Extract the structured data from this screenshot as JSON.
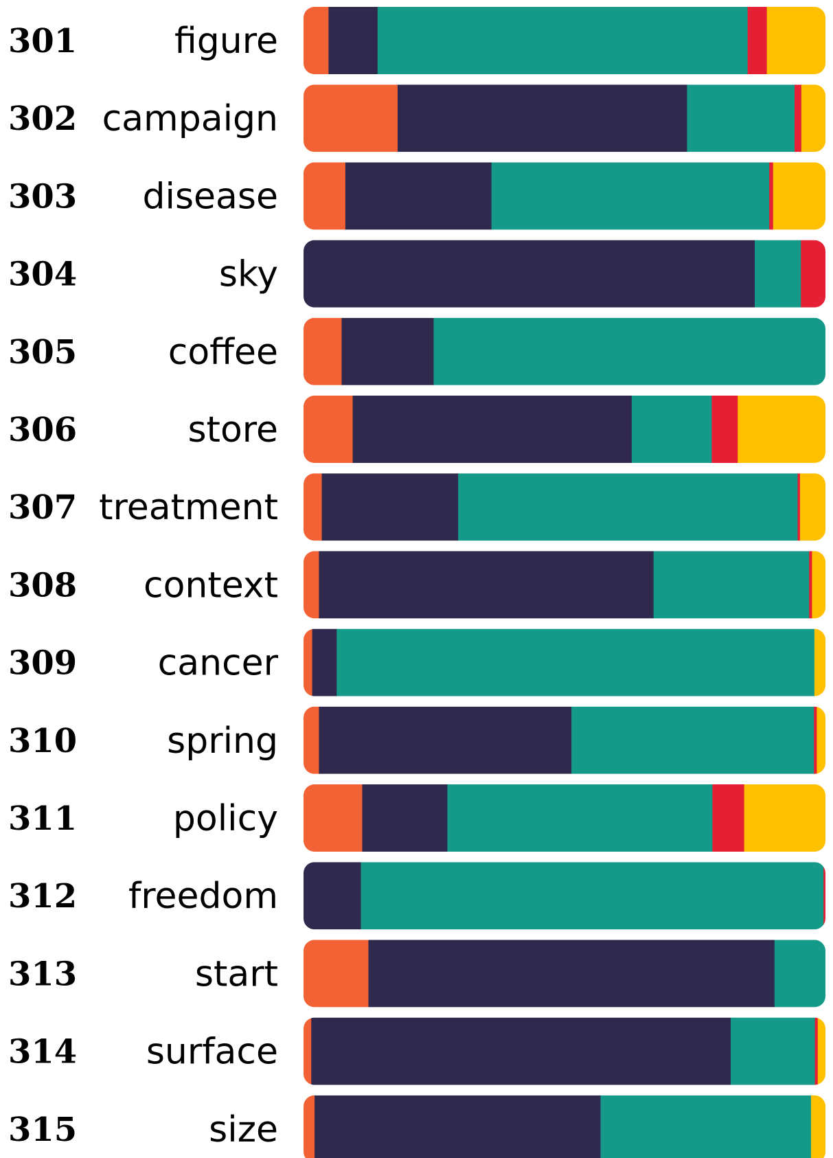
{
  "chart_data": {
    "type": "bar",
    "orientation": "horizontal",
    "stacked": true,
    "normalized": true,
    "legend": "none",
    "grid": false,
    "xlim": [
      0,
      100
    ],
    "segment_colors": [
      "#f26234",
      "#2f294d",
      "#159a89",
      "#e62034",
      "#ffc000"
    ],
    "rows": [
      {
        "rank": "301",
        "word": "figure",
        "segments": [
          5.2,
          10.2,
          77.0,
          4.0,
          12.2
        ]
      },
      {
        "rank": "302",
        "word": "campaign",
        "segments": [
          19.5,
          60.0,
          22.3,
          1.4,
          5.0
        ]
      },
      {
        "rank": "303",
        "word": "disease",
        "segments": [
          8.7,
          30.4,
          57.8,
          0.8,
          10.9
        ]
      },
      {
        "rank": "304",
        "word": "sky",
        "segments": [
          0,
          93.8,
          9.6,
          5.1,
          0
        ]
      },
      {
        "rank": "305",
        "word": "coffee",
        "segments": [
          7.9,
          19.1,
          81.3,
          0,
          0
        ]
      },
      {
        "rank": "306",
        "word": "store",
        "segments": [
          10.2,
          57.9,
          16.6,
          5.4,
          18.2
        ]
      },
      {
        "rank": "307",
        "word": "treatment",
        "segments": [
          3.8,
          28.4,
          70.7,
          0.5,
          5.3
        ]
      },
      {
        "rank": "308",
        "word": "context",
        "segments": [
          3.2,
          69.7,
          32.4,
          0.6,
          2.8
        ]
      },
      {
        "rank": "309",
        "word": "cancer",
        "segments": [
          1.8,
          5.1,
          99.4,
          0,
          2.3
        ]
      },
      {
        "rank": "310",
        "word": "spring",
        "segments": [
          3.2,
          52.6,
          50.5,
          0.6,
          1.8
        ]
      },
      {
        "rank": "311",
        "word": "policy",
        "segments": [
          12.2,
          17.7,
          55.1,
          6.6,
          16.9
        ]
      },
      {
        "rank": "312",
        "word": "freedom",
        "segments": [
          0,
          11.8,
          95.2,
          0.4,
          0
        ]
      },
      {
        "rank": "313",
        "word": "start",
        "segments": [
          13.5,
          84.5,
          10.6,
          0,
          0
        ]
      },
      {
        "rank": "314",
        "word": "surface",
        "segments": [
          1.6,
          87.2,
          17.5,
          0.6,
          1.6
        ]
      },
      {
        "rank": "315",
        "word": "size",
        "segments": [
          2.3,
          59.5,
          43.8,
          0,
          3.0
        ]
      }
    ]
  }
}
